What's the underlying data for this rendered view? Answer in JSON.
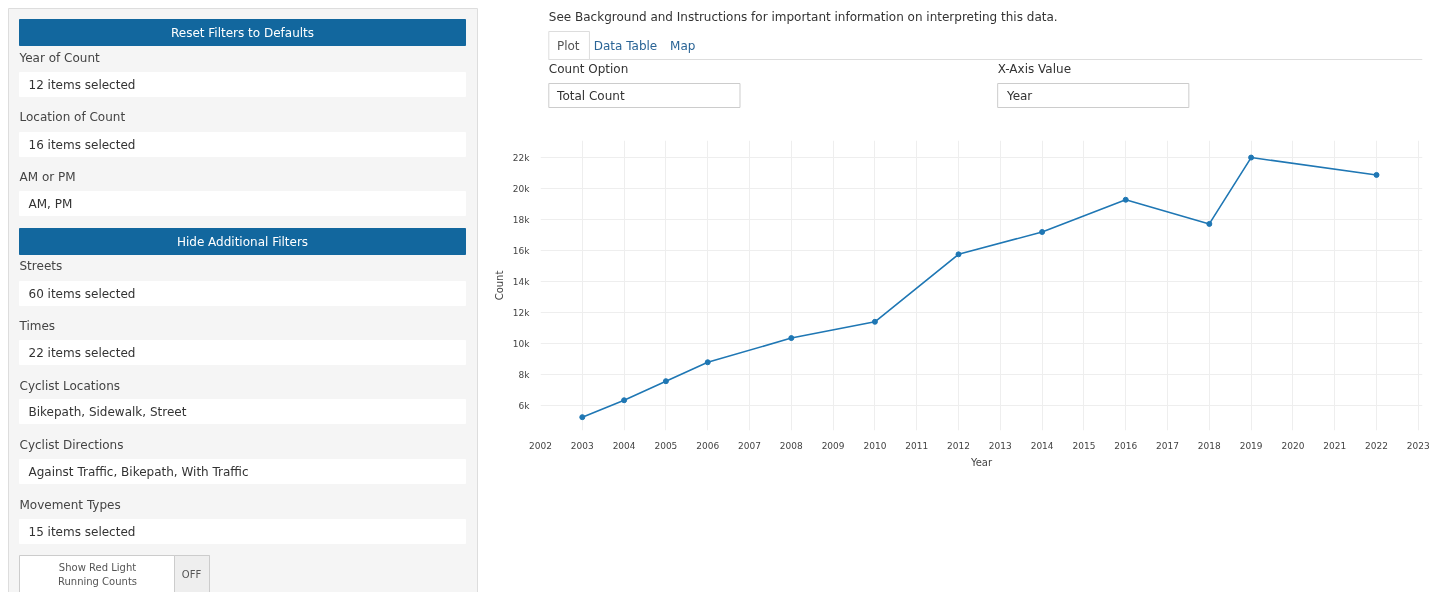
{
  "chart_data": [
    {
      "type": "other",
      "annotations": [
        "Reset Filters to Defaults",
        "Year of Count",
        "12 items selected",
        "Location of Count",
        "16 items selected",
        "AM or PM",
        "AM, PM",
        "Hide Additional Filters",
        "Streets",
        "60 items selected",
        "Times",
        "22 items selected",
        "Cyclist Locations",
        "Bikepath, Sidewalk, Street",
        "Cyclist Directions",
        "Against Traffic, Bikepath, With Traffic",
        "Movement Types",
        "15 items selected",
        "Show Red Light Running Counts",
        "OFF"
      ]
    },
    {
      "type": "other",
      "annotations": [
        "See Background and Instructions for important information on interpreting this data.",
        "Plot",
        "Data Table",
        "Map",
        "Count Option",
        "Total Count",
        "X-Axis Value",
        "Year"
      ]
    },
    {
      "type": "line",
      "xlabel": "Year",
      "ylabel": "Count",
      "x": [
        2003,
        2004,
        2005,
        2006,
        2008,
        2010,
        2012,
        2014,
        2016,
        2018,
        2019,
        2022
      ],
      "series": [
        {
          "color": "#1f77b4",
          "values": [
            5260,
            6350,
            7580,
            8800,
            10360,
            11410,
            15760,
            17200,
            19280,
            17720,
            22000,
            20880
          ]
        }
      ],
      "xlim": [
        2002,
        2023.1
      ],
      "xticks": [
        2002,
        2003,
        2004,
        2005,
        2006,
        2007,
        2008,
        2009,
        2010,
        2011,
        2012,
        2013,
        2014,
        2015,
        2016,
        2017,
        2018,
        2019,
        2020,
        2021,
        2022,
        2023
      ],
      "ylim": [
        4400,
        23100
      ],
      "yticks": [
        {
          "value": 6000,
          "label": "6k"
        },
        {
          "value": 8000,
          "label": "8k"
        },
        {
          "value": 10000,
          "label": "10k"
        },
        {
          "value": 12000,
          "label": "12k"
        },
        {
          "value": 14000,
          "label": "14k"
        },
        {
          "value": 16000,
          "label": "16k"
        },
        {
          "value": 18000,
          "label": "18k"
        },
        {
          "value": 20000,
          "label": "20k"
        },
        {
          "value": 22000,
          "label": "22k"
        }
      ],
      "grid": true,
      "marker": "circle",
      "line_style": "solid"
    }
  ]
}
